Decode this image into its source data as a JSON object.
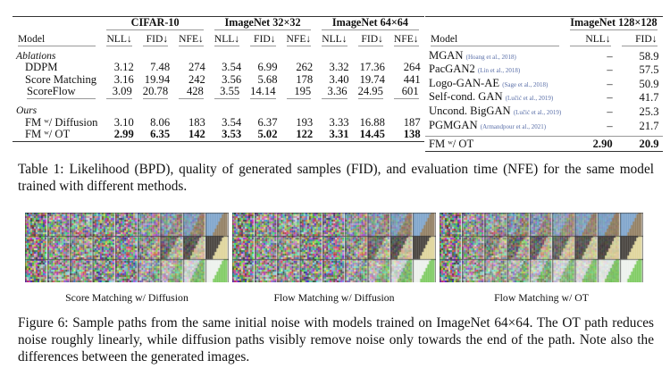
{
  "table_left": {
    "groups": [
      "CIFAR-10",
      "ImageNet 32×32",
      "ImageNet 64×64"
    ],
    "model_header": "Model",
    "metrics": [
      "NLL↓",
      "FID↓",
      "NFE↓"
    ],
    "sections": [
      {
        "title": "Ablations",
        "rows": [
          {
            "model": "DDPM",
            "values": [
              "3.12",
              "7.48",
              "274",
              "3.54",
              "6.99",
              "262",
              "3.32",
              "17.36",
              "264"
            ],
            "bold": false
          },
          {
            "model": "Score Matching",
            "values": [
              "3.16",
              "19.94",
              "242",
              "3.56",
              "5.68",
              "178",
              "3.40",
              "19.74",
              "441"
            ],
            "bold": false
          },
          {
            "model": "ScoreFlow",
            "values": [
              "3.09",
              "20.78",
              "428",
              "3.55",
              "14.14",
              "195",
              "3.36",
              "24.95",
              "601"
            ],
            "bold": false
          }
        ]
      },
      {
        "title": "Ours",
        "rows": [
          {
            "model": "FM ʷ/ Diffusion",
            "values": [
              "3.10",
              "8.06",
              "183",
              "3.54",
              "6.37",
              "193",
              "3.33",
              "16.88",
              "187"
            ],
            "bold": false
          },
          {
            "model": "FM ʷ/ OT",
            "values": [
              "2.99",
              "6.35",
              "142",
              "3.53",
              "5.02",
              "122",
              "3.31",
              "14.45",
              "138"
            ],
            "bold": true
          }
        ]
      }
    ]
  },
  "table_right": {
    "group": "ImageNet 128×128",
    "model_header": "Model",
    "metrics": [
      "NLL↓",
      "FID↓"
    ],
    "rows": [
      {
        "model": "MGAN",
        "cite": "(Hoang et al., 2018)",
        "nll": "–",
        "fid": "58.9"
      },
      {
        "model": "PacGAN2",
        "cite": "(Lin et al., 2018)",
        "nll": "–",
        "fid": "57.5"
      },
      {
        "model": "Logo-GAN-AE",
        "cite": "(Sage et al., 2018)",
        "nll": "–",
        "fid": "50.9"
      },
      {
        "model": "Self-cond. GAN",
        "cite": "(Lučić et al., 2019)",
        "nll": "–",
        "fid": "41.7"
      },
      {
        "model": "Uncond. BigGAN",
        "cite": "(Lučić et al., 2019)",
        "nll": "–",
        "fid": "25.3"
      },
      {
        "model": "PGMGAN",
        "cite": "(Armandpour et al., 2021)",
        "nll": "–",
        "fid": "21.7"
      }
    ],
    "ours": {
      "model": "FM ʷ/ OT",
      "nll": "2.90",
      "fid": "20.9"
    }
  },
  "table_caption": "Table 1: Likelihood (BPD), quality of generated samples (FID), and evaluation time (NFE) for the same model trained with different methods.",
  "figure": {
    "panels": [
      {
        "label": "Score Matching w/ Diffusion"
      },
      {
        "label": "Flow Matching w/ Diffusion"
      },
      {
        "label": "Flow Matching w/ OT"
      }
    ],
    "caption": "Figure 6: Sample paths from the same initial noise with models trained on ImageNet 64×64. The OT path reduces noise roughly linearly, while diffusion paths visibly remove noise only towards the end of the path. Note also the differences between the generated images."
  }
}
